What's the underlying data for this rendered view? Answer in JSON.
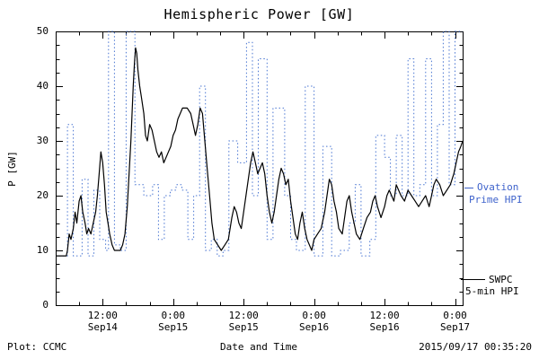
{
  "title": "Hemispheric Power [GW]",
  "axes": {
    "ylabel": "P [GW]",
    "xlabel": "Date and Time",
    "yticks": [
      0,
      10,
      20,
      30,
      40,
      50
    ],
    "y_minor_step": 2.5,
    "x_minor_step": 4,
    "xticks": [
      {
        "t": 12,
        "time": "12:00",
        "date": "Sep14"
      },
      {
        "t": 24,
        "time": "0:00",
        "date": "Sep15"
      },
      {
        "t": 36,
        "time": "12:00",
        "date": "Sep15"
      },
      {
        "t": 48,
        "time": "0:00",
        "date": "Sep16"
      },
      {
        "t": 60,
        "time": "12:00",
        "date": "Sep16"
      },
      {
        "t": 72,
        "time": "0:00",
        "date": "Sep17"
      }
    ]
  },
  "legend": {
    "ovation": {
      "line1": "Ovation",
      "line2": "Prime HPI",
      "color": "#3f63cb"
    },
    "swpc": {
      "line1": "SWPC",
      "line2": "5-min HPI",
      "color": "#000000"
    }
  },
  "footer": {
    "left": "Plot: CCMC",
    "right": "2015/09/17 00:35:20"
  },
  "chart_data": {
    "type": "line",
    "title": "Hemispheric Power [GW]",
    "xlabel": "Date and Time",
    "ylabel": "P [GW]",
    "ylim": [
      0,
      50
    ],
    "xlim_hours": [
      4,
      73.3
    ],
    "x_unit": "hours since 2015-09-14 00:00 UT",
    "grid": false,
    "legend_position": "right",
    "series": [
      {
        "name": "Ovation Prime HPI",
        "style": "dotted-step",
        "color": "#4a76d2",
        "points": [
          [
            4,
            9
          ],
          [
            6,
            33
          ],
          [
            7,
            9
          ],
          [
            8.5,
            23
          ],
          [
            9.5,
            9
          ],
          [
            10.5,
            21
          ],
          [
            11.5,
            12
          ],
          [
            12.5,
            10
          ],
          [
            13,
            50
          ],
          [
            14,
            11
          ],
          [
            15,
            10
          ],
          [
            16,
            50
          ],
          [
            17.5,
            22
          ],
          [
            19,
            20
          ],
          [
            20.5,
            22
          ],
          [
            21.5,
            12
          ],
          [
            22.5,
            20
          ],
          [
            23.5,
            21
          ],
          [
            24.5,
            22
          ],
          [
            25.5,
            21
          ],
          [
            26.5,
            12
          ],
          [
            27.5,
            20
          ],
          [
            28.5,
            40
          ],
          [
            29.5,
            10
          ],
          [
            30.5,
            12
          ],
          [
            31.5,
            9
          ],
          [
            32.5,
            10
          ],
          [
            33.5,
            30
          ],
          [
            35,
            26
          ],
          [
            36.5,
            48
          ],
          [
            37.5,
            20
          ],
          [
            38.5,
            45
          ],
          [
            40,
            12
          ],
          [
            41,
            36
          ],
          [
            43,
            20
          ],
          [
            44,
            12
          ],
          [
            45,
            10
          ],
          [
            46.5,
            40
          ],
          [
            48,
            9
          ],
          [
            49.5,
            29
          ],
          [
            51,
            9
          ],
          [
            52.5,
            10
          ],
          [
            54,
            15
          ],
          [
            55,
            22
          ],
          [
            56,
            9
          ],
          [
            57.5,
            12
          ],
          [
            58.5,
            31
          ],
          [
            60,
            27
          ],
          [
            61,
            20
          ],
          [
            62,
            31
          ],
          [
            63,
            20
          ],
          [
            64,
            45
          ],
          [
            65,
            20
          ],
          [
            66,
            22
          ],
          [
            67,
            45
          ],
          [
            68,
            20
          ],
          [
            69,
            33
          ],
          [
            70,
            50
          ],
          [
            71,
            22
          ],
          [
            72,
            50
          ],
          [
            73.3,
            50
          ]
        ]
      },
      {
        "name": "SWPC 5-min HPI",
        "style": "solid",
        "color": "#000000",
        "points": [
          [
            4,
            9
          ],
          [
            5.8,
            9
          ],
          [
            6,
            10
          ],
          [
            6.3,
            13
          ],
          [
            6.6,
            12
          ],
          [
            7,
            14
          ],
          [
            7.3,
            17
          ],
          [
            7.6,
            15
          ],
          [
            8,
            19
          ],
          [
            8.3,
            20
          ],
          [
            8.6,
            17
          ],
          [
            9,
            15
          ],
          [
            9.3,
            13
          ],
          [
            9.6,
            14
          ],
          [
            10,
            13
          ],
          [
            10.4,
            15
          ],
          [
            10.8,
            17
          ],
          [
            11.1,
            20
          ],
          [
            11.4,
            24
          ],
          [
            11.7,
            28
          ],
          [
            12,
            26
          ],
          [
            12.3,
            22
          ],
          [
            12.6,
            17
          ],
          [
            12.9,
            15
          ],
          [
            13.2,
            13
          ],
          [
            13.6,
            11
          ],
          [
            14,
            10
          ],
          [
            15,
            10
          ],
          [
            15.4,
            11
          ],
          [
            15.8,
            13
          ],
          [
            16.2,
            18
          ],
          [
            16.5,
            24
          ],
          [
            16.8,
            30
          ],
          [
            17,
            35
          ],
          [
            17.2,
            40
          ],
          [
            17.4,
            44
          ],
          [
            17.6,
            47
          ],
          [
            17.8,
            46
          ],
          [
            18,
            43
          ],
          [
            18.3,
            40
          ],
          [
            18.6,
            38
          ],
          [
            19,
            35
          ],
          [
            19.3,
            31
          ],
          [
            19.6,
            30
          ],
          [
            20,
            33
          ],
          [
            20.4,
            32
          ],
          [
            20.8,
            30
          ],
          [
            21.2,
            28
          ],
          [
            21.6,
            27
          ],
          [
            22,
            28
          ],
          [
            22.4,
            26
          ],
          [
            22.8,
            27
          ],
          [
            23.2,
            28
          ],
          [
            23.6,
            29
          ],
          [
            24,
            31
          ],
          [
            24.4,
            32
          ],
          [
            24.8,
            34
          ],
          [
            25.2,
            35
          ],
          [
            25.6,
            36
          ],
          [
            26.4,
            36
          ],
          [
            27,
            35
          ],
          [
            27.4,
            33
          ],
          [
            27.8,
            31
          ],
          [
            28.2,
            33
          ],
          [
            28.6,
            36
          ],
          [
            29,
            35
          ],
          [
            29.4,
            30
          ],
          [
            29.8,
            25
          ],
          [
            30.2,
            20
          ],
          [
            30.6,
            15
          ],
          [
            31,
            12
          ],
          [
            31.6,
            11
          ],
          [
            32.2,
            10
          ],
          [
            32.8,
            11
          ],
          [
            33.4,
            12
          ],
          [
            34,
            16
          ],
          [
            34.4,
            18
          ],
          [
            34.8,
            17
          ],
          [
            35.2,
            15
          ],
          [
            35.6,
            14
          ],
          [
            36,
            17
          ],
          [
            36.4,
            20
          ],
          [
            36.8,
            23
          ],
          [
            37.2,
            26
          ],
          [
            37.6,
            28
          ],
          [
            38,
            26
          ],
          [
            38.4,
            24
          ],
          [
            38.8,
            25
          ],
          [
            39.2,
            26
          ],
          [
            39.6,
            24
          ],
          [
            40,
            20
          ],
          [
            40.4,
            17
          ],
          [
            40.8,
            15
          ],
          [
            41.2,
            17
          ],
          [
            41.6,
            20
          ],
          [
            42,
            23
          ],
          [
            42.4,
            25
          ],
          [
            42.8,
            24
          ],
          [
            43.2,
            22
          ],
          [
            43.6,
            23
          ],
          [
            44,
            19
          ],
          [
            44.4,
            16
          ],
          [
            44.8,
            13
          ],
          [
            45.2,
            12
          ],
          [
            45.6,
            15
          ],
          [
            46,
            17
          ],
          [
            46.4,
            14
          ],
          [
            46.8,
            12
          ],
          [
            47.2,
            11
          ],
          [
            47.6,
            10
          ],
          [
            48,
            12
          ],
          [
            48.6,
            13
          ],
          [
            49.2,
            14
          ],
          [
            49.8,
            17
          ],
          [
            50.2,
            20
          ],
          [
            50.6,
            23
          ],
          [
            51,
            22
          ],
          [
            51.4,
            19
          ],
          [
            51.8,
            17
          ],
          [
            52.2,
            14
          ],
          [
            52.8,
            13
          ],
          [
            53.2,
            16
          ],
          [
            53.6,
            19
          ],
          [
            54,
            20
          ],
          [
            54.4,
            17
          ],
          [
            54.8,
            15
          ],
          [
            55.2,
            13
          ],
          [
            55.8,
            12
          ],
          [
            56.4,
            14
          ],
          [
            57,
            16
          ],
          [
            57.6,
            17
          ],
          [
            58,
            19
          ],
          [
            58.4,
            20
          ],
          [
            58.8,
            18
          ],
          [
            59.4,
            16
          ],
          [
            60,
            18
          ],
          [
            60.4,
            20
          ],
          [
            60.8,
            21
          ],
          [
            61.2,
            20
          ],
          [
            61.6,
            19
          ],
          [
            62,
            22
          ],
          [
            62.4,
            21
          ],
          [
            62.8,
            20
          ],
          [
            63.4,
            19
          ],
          [
            64,
            21
          ],
          [
            64.6,
            20
          ],
          [
            65.2,
            19
          ],
          [
            65.8,
            18
          ],
          [
            66.4,
            19
          ],
          [
            67,
            20
          ],
          [
            67.6,
            18
          ],
          [
            68,
            20
          ],
          [
            68.4,
            22
          ],
          [
            68.8,
            23
          ],
          [
            69.4,
            22
          ],
          [
            70,
            20
          ],
          [
            70.6,
            21
          ],
          [
            71.2,
            22
          ],
          [
            71.8,
            24
          ],
          [
            72.2,
            26
          ],
          [
            72.6,
            28
          ],
          [
            73,
            29
          ],
          [
            73.3,
            30
          ]
        ]
      }
    ]
  }
}
